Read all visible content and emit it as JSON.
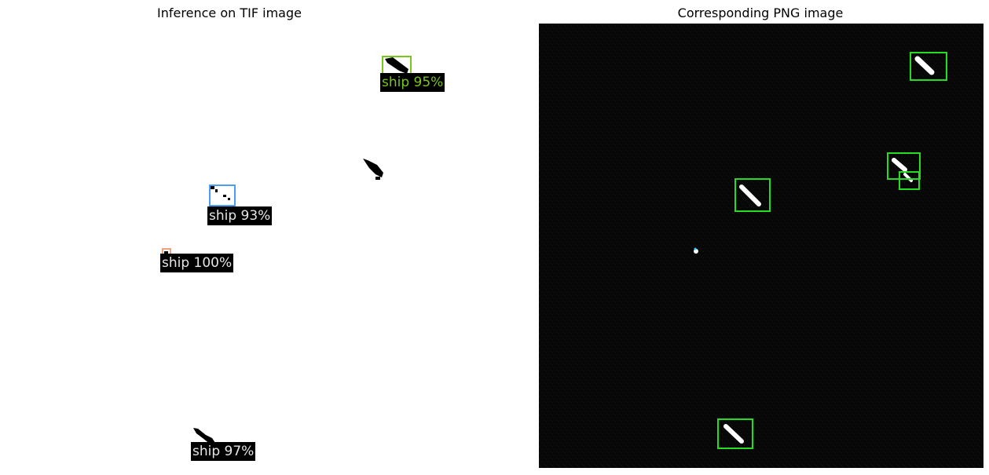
{
  "figure": {
    "left_title": "Inference on TIF image",
    "right_title": "Corresponding PNG image"
  },
  "detections": [
    {
      "label": "ship 95%",
      "color": "#7ac51b",
      "label_color": "#7ac51b"
    },
    {
      "label": "ship 93%",
      "color": "#4a9df0",
      "label_color": "#e6e6e6"
    },
    {
      "label": "ship 100%",
      "color": "#f2a07b",
      "label_color": "#e6e6e6"
    },
    {
      "label": "ship 97%",
      "color": "#2f2f2f",
      "label_color": "#e6e6e6"
    }
  ],
  "png_box_color": "#22dd22"
}
